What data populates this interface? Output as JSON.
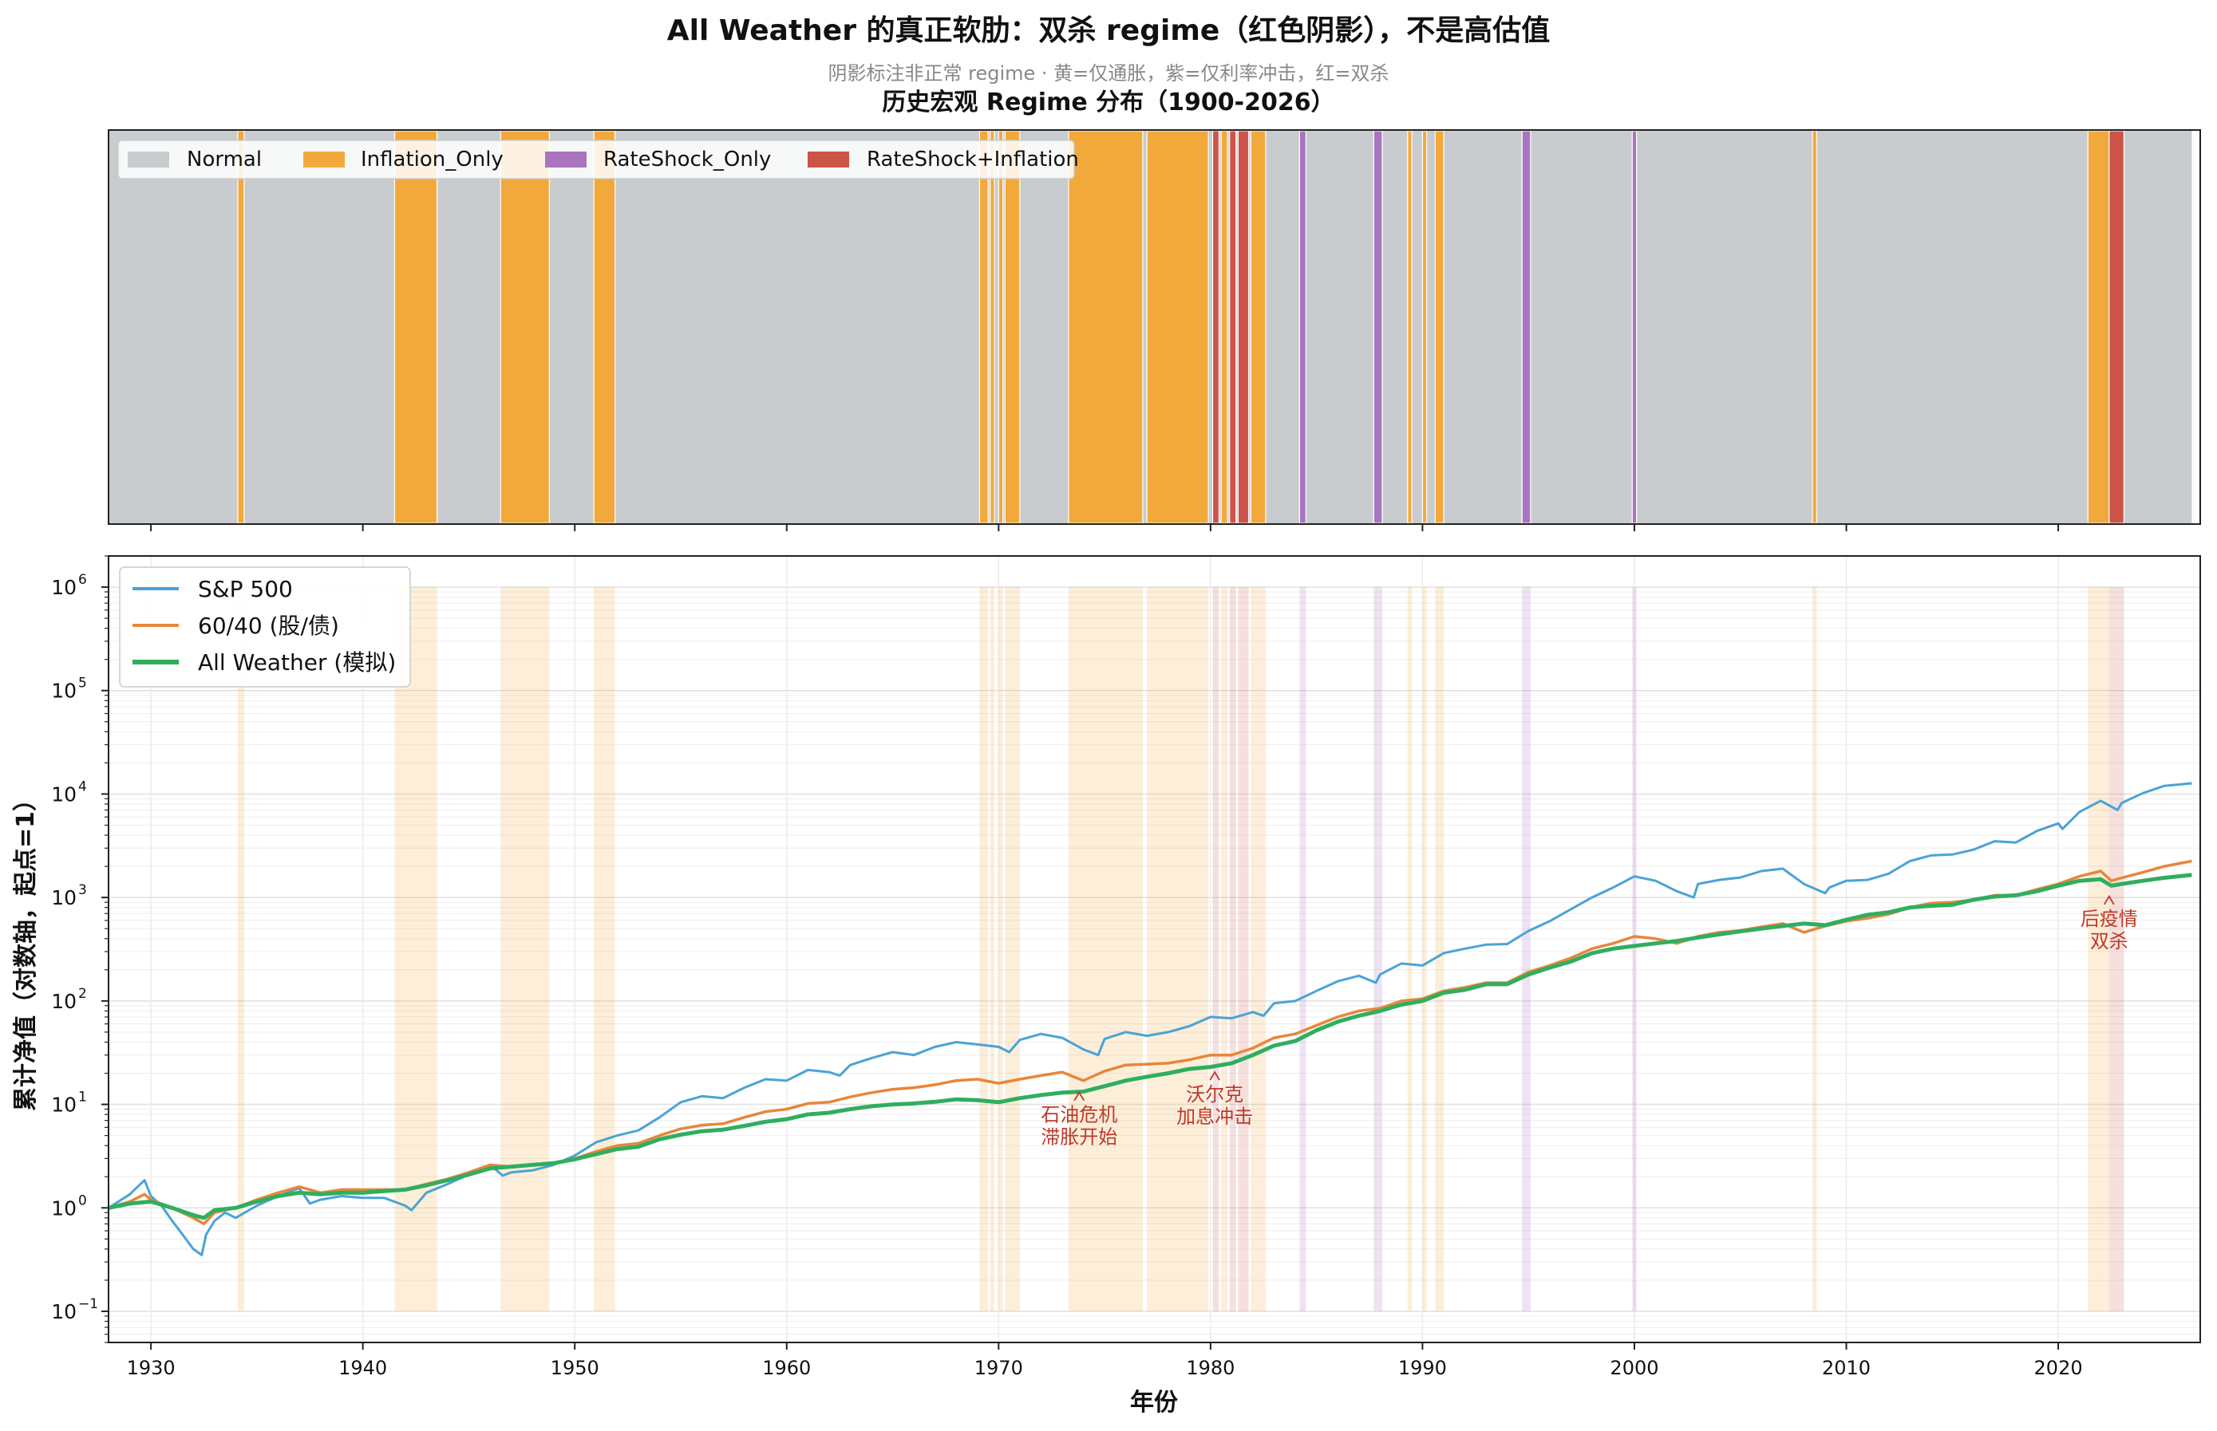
{
  "title": "All Weather 的真正软肋：双杀 regime（红色阴影），不是高估值",
  "subtitle": "阴影标注非正常 regime · 黄=仅通胀，紫=仅利率冲击，红=双杀",
  "colors": {
    "Normal": "#c8cccf",
    "Inflation_Only": "#f2a93b",
    "RateShock_Only": "#a974c0",
    "RateShock+Inflation": "#cd5448",
    "sp500": "#4aa3d6",
    "sixty_forty": "#e8863a",
    "all_weather": "#2fae5f",
    "annotation": "#c0392b"
  },
  "chart_data": [
    {
      "type": "area",
      "title": "历史宏观 Regime 分布（1900-2026）",
      "xlim": [
        1928,
        2026.7
      ],
      "legend": {
        "position": "top-left",
        "entries": [
          "Normal",
          "Inflation_Only",
          "RateShock_Only",
          "RateShock+Inflation"
        ]
      },
      "regimes": [
        {
          "start": 1928.0,
          "end": 2026.3,
          "type": "Normal"
        },
        {
          "start": 1934.1,
          "end": 1934.4,
          "type": "Inflation_Only"
        },
        {
          "start": 1941.5,
          "end": 1943.5,
          "type": "Inflation_Only"
        },
        {
          "start": 1946.5,
          "end": 1948.8,
          "type": "Inflation_Only"
        },
        {
          "start": 1950.9,
          "end": 1951.9,
          "type": "Inflation_Only"
        },
        {
          "start": 1969.1,
          "end": 1969.5,
          "type": "Inflation_Only"
        },
        {
          "start": 1969.6,
          "end": 1969.8,
          "type": "Inflation_Only"
        },
        {
          "start": 1970.0,
          "end": 1970.2,
          "type": "Inflation_Only"
        },
        {
          "start": 1970.3,
          "end": 1971.0,
          "type": "Inflation_Only"
        },
        {
          "start": 1973.3,
          "end": 1976.8,
          "type": "Inflation_Only"
        },
        {
          "start": 1977.0,
          "end": 1979.9,
          "type": "Inflation_Only"
        },
        {
          "start": 1980.1,
          "end": 1980.4,
          "type": "RateShock+Inflation"
        },
        {
          "start": 1980.5,
          "end": 1980.8,
          "type": "Inflation_Only"
        },
        {
          "start": 1980.9,
          "end": 1981.2,
          "type": "RateShock+Inflation"
        },
        {
          "start": 1981.3,
          "end": 1981.8,
          "type": "RateShock+Inflation"
        },
        {
          "start": 1981.9,
          "end": 1982.6,
          "type": "Inflation_Only"
        },
        {
          "start": 1984.2,
          "end": 1984.5,
          "type": "RateShock_Only"
        },
        {
          "start": 1987.7,
          "end": 1988.1,
          "type": "RateShock_Only"
        },
        {
          "start": 1989.3,
          "end": 1989.5,
          "type": "Inflation_Only"
        },
        {
          "start": 1990.0,
          "end": 1990.2,
          "type": "Inflation_Only"
        },
        {
          "start": 1990.6,
          "end": 1991.0,
          "type": "Inflation_Only"
        },
        {
          "start": 1994.7,
          "end": 1995.1,
          "type": "RateShock_Only"
        },
        {
          "start": 1999.9,
          "end": 2000.1,
          "type": "RateShock_Only"
        },
        {
          "start": 2008.4,
          "end": 2008.6,
          "type": "Inflation_Only"
        },
        {
          "start": 2021.4,
          "end": 2022.4,
          "type": "Inflation_Only"
        },
        {
          "start": 2022.4,
          "end": 2023.1,
          "type": "RateShock+Inflation"
        }
      ]
    },
    {
      "type": "line",
      "xlabel": "年份",
      "ylabel": "累计净值（对数轴，起点=1）",
      "yscale": "log",
      "xlim": [
        1928,
        2026.7
      ],
      "ylim": [
        0.05,
        2000000
      ],
      "xticks": [
        "1930",
        "1940",
        "1950",
        "1960",
        "1970",
        "1980",
        "1990",
        "2000",
        "2010",
        "2020"
      ],
      "yticks": [
        {
          "base": "10",
          "exp": "−1"
        },
        {
          "base": "10",
          "exp": "0"
        },
        {
          "base": "10",
          "exp": "1"
        },
        {
          "base": "10",
          "exp": "2"
        },
        {
          "base": "10",
          "exp": "3"
        },
        {
          "base": "10",
          "exp": "4"
        },
        {
          "base": "10",
          "exp": "5"
        },
        {
          "base": "10",
          "exp": "6"
        }
      ],
      "grid": true,
      "legend": {
        "position": "top-left"
      },
      "series": [
        {
          "name": "S&P 500",
          "x": [
            1928,
            1929,
            1929.7,
            1930,
            1930.5,
            1931,
            1931.5,
            1932,
            1932.4,
            1932.6,
            1933,
            1933.5,
            1934,
            1935,
            1936,
            1937,
            1937.5,
            1938,
            1939,
            1940,
            1941,
            1942,
            1942.3,
            1943,
            1944,
            1945,
            1946,
            1946.6,
            1947,
            1948,
            1949,
            1950,
            1951,
            1952,
            1953,
            1954,
            1955,
            1956,
            1957,
            1958,
            1959,
            1960,
            1961,
            1962,
            1962.5,
            1963,
            1964,
            1965,
            1966,
            1967,
            1968,
            1969,
            1970,
            1970.5,
            1971,
            1972,
            1973,
            1974,
            1974.7,
            1975,
            1976,
            1977,
            1978,
            1979,
            1980,
            1981,
            1982,
            1982.5,
            1983,
            1984,
            1985,
            1986,
            1987,
            1987.8,
            1988,
            1989,
            1990,
            1991,
            1992,
            1993,
            1994,
            1995,
            1996,
            1997,
            1998,
            1999,
            2000,
            2001,
            2002,
            2002.8,
            2003,
            2004,
            2005,
            2006,
            2007,
            2008,
            2009,
            2009.2,
            2010,
            2011,
            2012,
            2013,
            2014,
            2015,
            2016,
            2017,
            2018,
            2019,
            2020,
            2020.2,
            2021,
            2022,
            2022.8,
            2023,
            2024,
            2025,
            2026.3
          ],
          "values": [
            1.0,
            1.35,
            1.85,
            1.3,
            1.05,
            0.75,
            0.55,
            0.4,
            0.35,
            0.55,
            0.75,
            0.9,
            0.8,
            1.05,
            1.3,
            1.55,
            1.1,
            1.2,
            1.3,
            1.25,
            1.25,
            1.05,
            0.95,
            1.4,
            1.7,
            2.1,
            2.6,
            2.05,
            2.2,
            2.3,
            2.6,
            3.2,
            4.3,
            5.0,
            5.6,
            7.5,
            10.5,
            12.0,
            11.5,
            14.5,
            17.5,
            17.0,
            21.5,
            20.5,
            19.0,
            24.0,
            28.0,
            32.0,
            30.0,
            36.0,
            40.0,
            38.0,
            36.0,
            32.0,
            42.0,
            48.0,
            44.0,
            34.0,
            30.0,
            43.0,
            50.0,
            46.0,
            50.0,
            57.0,
            70.0,
            68.0,
            78.0,
            72.0,
            95.0,
            100.0,
            125.0,
            155.0,
            175.0,
            150.0,
            180.0,
            230.0,
            220.0,
            290.0,
            320.0,
            350.0,
            355.0,
            475.0,
            590.0,
            770.0,
            1000.0,
            1250.0,
            1600.0,
            1450.0,
            1150.0,
            1000.0,
            1350.0,
            1480.0,
            1560.0,
            1800.0,
            1900.0,
            1350.0,
            1100.0,
            1250.0,
            1450.0,
            1480.0,
            1700.0,
            2250.0,
            2550.0,
            2600.0,
            2900.0,
            3500.0,
            3400.0,
            4400.0,
            5200.0,
            4600.0,
            6700.0,
            8600.0,
            7000.0,
            8200.0,
            10200.0,
            12000.0,
            12700.0
          ]
        },
        {
          "name": "60/40 (股/债)",
          "x": [
            1928,
            1929,
            1929.7,
            1930,
            1931,
            1932,
            1932.5,
            1933,
            1934,
            1935,
            1936,
            1937,
            1938,
            1939,
            1940,
            1941,
            1942,
            1943,
            1944,
            1945,
            1946,
            1947,
            1948,
            1949,
            1950,
            1951,
            1952,
            1953,
            1954,
            1955,
            1956,
            1957,
            1958,
            1959,
            1960,
            1961,
            1962,
            1963,
            1964,
            1965,
            1966,
            1967,
            1968,
            1969,
            1970,
            1971,
            1972,
            1973,
            1974,
            1975,
            1976,
            1977,
            1978,
            1979,
            1980,
            1981,
            1982,
            1983,
            1984,
            1985,
            1986,
            1987,
            1988,
            1989,
            1990,
            1991,
            1992,
            1993,
            1994,
            1995,
            1996,
            1997,
            1998,
            1999,
            2000,
            2001,
            2002,
            2003,
            2004,
            2005,
            2006,
            2007,
            2008,
            2009,
            2010,
            2011,
            2012,
            2013,
            2014,
            2015,
            2016,
            2017,
            2018,
            2019,
            2020,
            2021,
            2022,
            2022.5,
            2023,
            2024,
            2025,
            2026.3
          ],
          "values": [
            1.0,
            1.15,
            1.35,
            1.2,
            1.0,
            0.8,
            0.7,
            0.9,
            1.0,
            1.2,
            1.4,
            1.6,
            1.4,
            1.5,
            1.5,
            1.5,
            1.5,
            1.7,
            1.9,
            2.2,
            2.6,
            2.5,
            2.6,
            2.7,
            3.0,
            3.5,
            4.0,
            4.2,
            5.0,
            5.8,
            6.3,
            6.5,
            7.5,
            8.5,
            9.0,
            10.2,
            10.5,
            11.8,
            13.0,
            14.0,
            14.5,
            15.5,
            17.0,
            17.5,
            16.0,
            17.5,
            19.0,
            20.5,
            17.0,
            21.0,
            24.0,
            24.5,
            25.0,
            27.0,
            30.0,
            30.0,
            35.0,
            44.0,
            48.0,
            58.0,
            70.0,
            80.0,
            85.0,
            100.0,
            105.0,
            125.0,
            135.0,
            150.0,
            150.0,
            190.0,
            220.0,
            260.0,
            320.0,
            360.0,
            420.0,
            400.0,
            360.0,
            420.0,
            460.0,
            480.0,
            520.0,
            560.0,
            460.0,
            530.0,
            590.0,
            630.0,
            690.0,
            800.0,
            880.0,
            900.0,
            950.0,
            1050.0,
            1050.0,
            1200.0,
            1350.0,
            1600.0,
            1800.0,
            1450.0,
            1550.0,
            1750.0,
            2000.0,
            2250.0
          ]
        },
        {
          "name": "All Weather (模拟)",
          "x": [
            1928,
            1929,
            1930,
            1931,
            1932,
            1932.5,
            1933,
            1934,
            1935,
            1936,
            1937,
            1938,
            1939,
            1940,
            1941,
            1942,
            1943,
            1944,
            1945,
            1946,
            1947,
            1948,
            1949,
            1950,
            1951,
            1952,
            1953,
            1954,
            1955,
            1956,
            1957,
            1958,
            1959,
            1960,
            1961,
            1962,
            1963,
            1964,
            1965,
            1966,
            1967,
            1968,
            1969,
            1970,
            1971,
            1972,
            1973,
            1974,
            1975,
            1976,
            1977,
            1978,
            1979,
            1980,
            1981,
            1982,
            1983,
            1984,
            1985,
            1986,
            1987,
            1988,
            1989,
            1990,
            1991,
            1992,
            1993,
            1994,
            1995,
            1996,
            1997,
            1998,
            1999,
            2000,
            2001,
            2002,
            2003,
            2004,
            2005,
            2006,
            2007,
            2008,
            2009,
            2010,
            2011,
            2012,
            2013,
            2014,
            2015,
            2016,
            2017,
            2018,
            2019,
            2020,
            2021,
            2022,
            2022.5,
            2023,
            2024,
            2025,
            2026.3
          ],
          "values": [
            1.0,
            1.1,
            1.15,
            1.0,
            0.85,
            0.8,
            0.95,
            1.0,
            1.15,
            1.3,
            1.4,
            1.35,
            1.4,
            1.4,
            1.45,
            1.5,
            1.65,
            1.85,
            2.1,
            2.4,
            2.5,
            2.6,
            2.7,
            2.95,
            3.3,
            3.7,
            3.9,
            4.6,
            5.1,
            5.5,
            5.7,
            6.2,
            6.8,
            7.2,
            8.0,
            8.3,
            9.0,
            9.6,
            10.0,
            10.2,
            10.6,
            11.2,
            11.0,
            10.5,
            11.5,
            12.3,
            13.0,
            13.3,
            15.0,
            17.0,
            18.5,
            20.0,
            22.0,
            23.0,
            25.0,
            30.0,
            37.0,
            41.0,
            52.0,
            63.0,
            72.0,
            80.0,
            92.0,
            100.0,
            120.0,
            128.0,
            145.0,
            145.0,
            180.0,
            210.0,
            240.0,
            290.0,
            320.0,
            340.0,
            360.0,
            380.0,
            410.0,
            440.0,
            470.0,
            500.0,
            530.0,
            560.0,
            540.0,
            610.0,
            680.0,
            720.0,
            800.0,
            830.0,
            850.0,
            950.0,
            1020.0,
            1050.0,
            1150.0,
            1300.0,
            1450.0,
            1500.0,
            1300.0,
            1350.0,
            1450.0,
            1550.0,
            1650.0
          ]
        }
      ],
      "annotations": [
        {
          "x": 1973.8,
          "y": 14.0,
          "lines": [
            "石油危机",
            "滞胀开始"
          ]
        },
        {
          "x": 1980.2,
          "y": 22.0,
          "lines": [
            "沃尔克",
            "加息冲击"
          ]
        },
        {
          "x": 2022.4,
          "y": 1100.0,
          "lines": [
            "后疫情",
            "双杀"
          ]
        }
      ]
    }
  ]
}
